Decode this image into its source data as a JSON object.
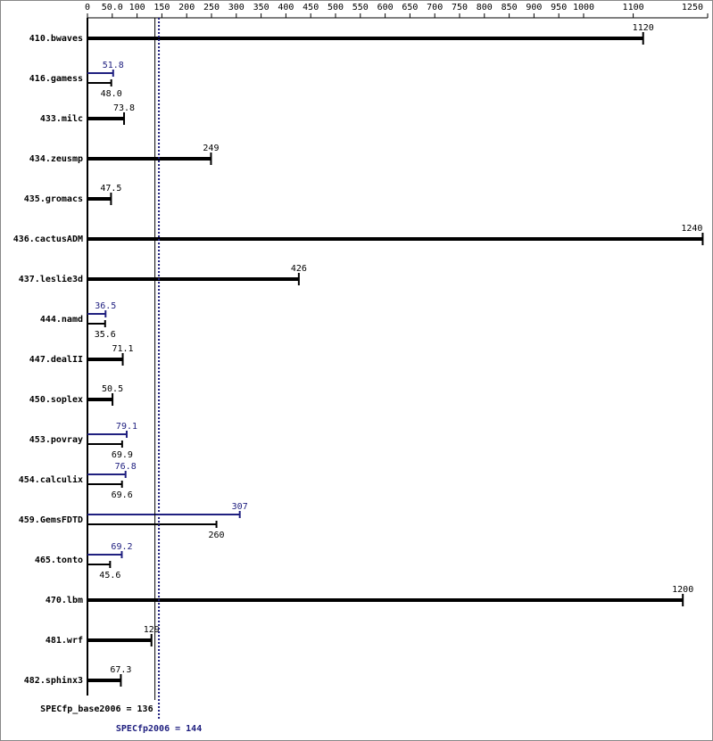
{
  "chart_data": {
    "type": "spec-bar",
    "categories": [
      "410.bwaves",
      "416.gamess",
      "433.milc",
      "434.zeusmp",
      "435.gromacs",
      "436.cactusADM",
      "437.leslie3d",
      "444.namd",
      "447.dealII",
      "450.soplex",
      "453.povray",
      "454.calculix",
      "459.GemsFDTD",
      "465.tonto",
      "470.lbm",
      "481.wrf",
      "482.sphinx3"
    ],
    "series": [
      {
        "color": "#000000",
        "values": [
          1120,
          48.0,
          73.8,
          249,
          47.5,
          1240,
          426,
          35.6,
          71.1,
          50.5,
          69.9,
          69.6,
          260,
          45.6,
          1200,
          129,
          67.3
        ],
        "value_labels": [
          "1120",
          "48.0",
          "73.8",
          "249",
          "47.5",
          "1240",
          "426",
          "35.6",
          "71.1",
          "50.5",
          "69.9",
          "69.6",
          "260",
          "45.6",
          "1200",
          "129",
          "67.3"
        ]
      },
      {
        "color": "#202080",
        "values": [
          null,
          51.8,
          null,
          null,
          null,
          null,
          null,
          36.5,
          null,
          null,
          79.1,
          76.8,
          307,
          69.2,
          null,
          null,
          null
        ]
      }
    ],
    "xlim": [
      0,
      1250
    ],
    "xticks": [
      0,
      {
        "value": 50,
        "label": "50.0"
      },
      100,
      150,
      200,
      250,
      300,
      350,
      400,
      450,
      500,
      550,
      600,
      650,
      700,
      750,
      800,
      850,
      900,
      950,
      1000,
      1100,
      1250
    ],
    "reference_lines": [
      {
        "value": 136,
        "label": "SPECfp_base2006 = 136",
        "color": "#000000",
        "style": "solid"
      },
      {
        "value": 144,
        "label": "SPECfp2006 = 144",
        "color": "#202080",
        "style": "dotted"
      }
    ]
  }
}
